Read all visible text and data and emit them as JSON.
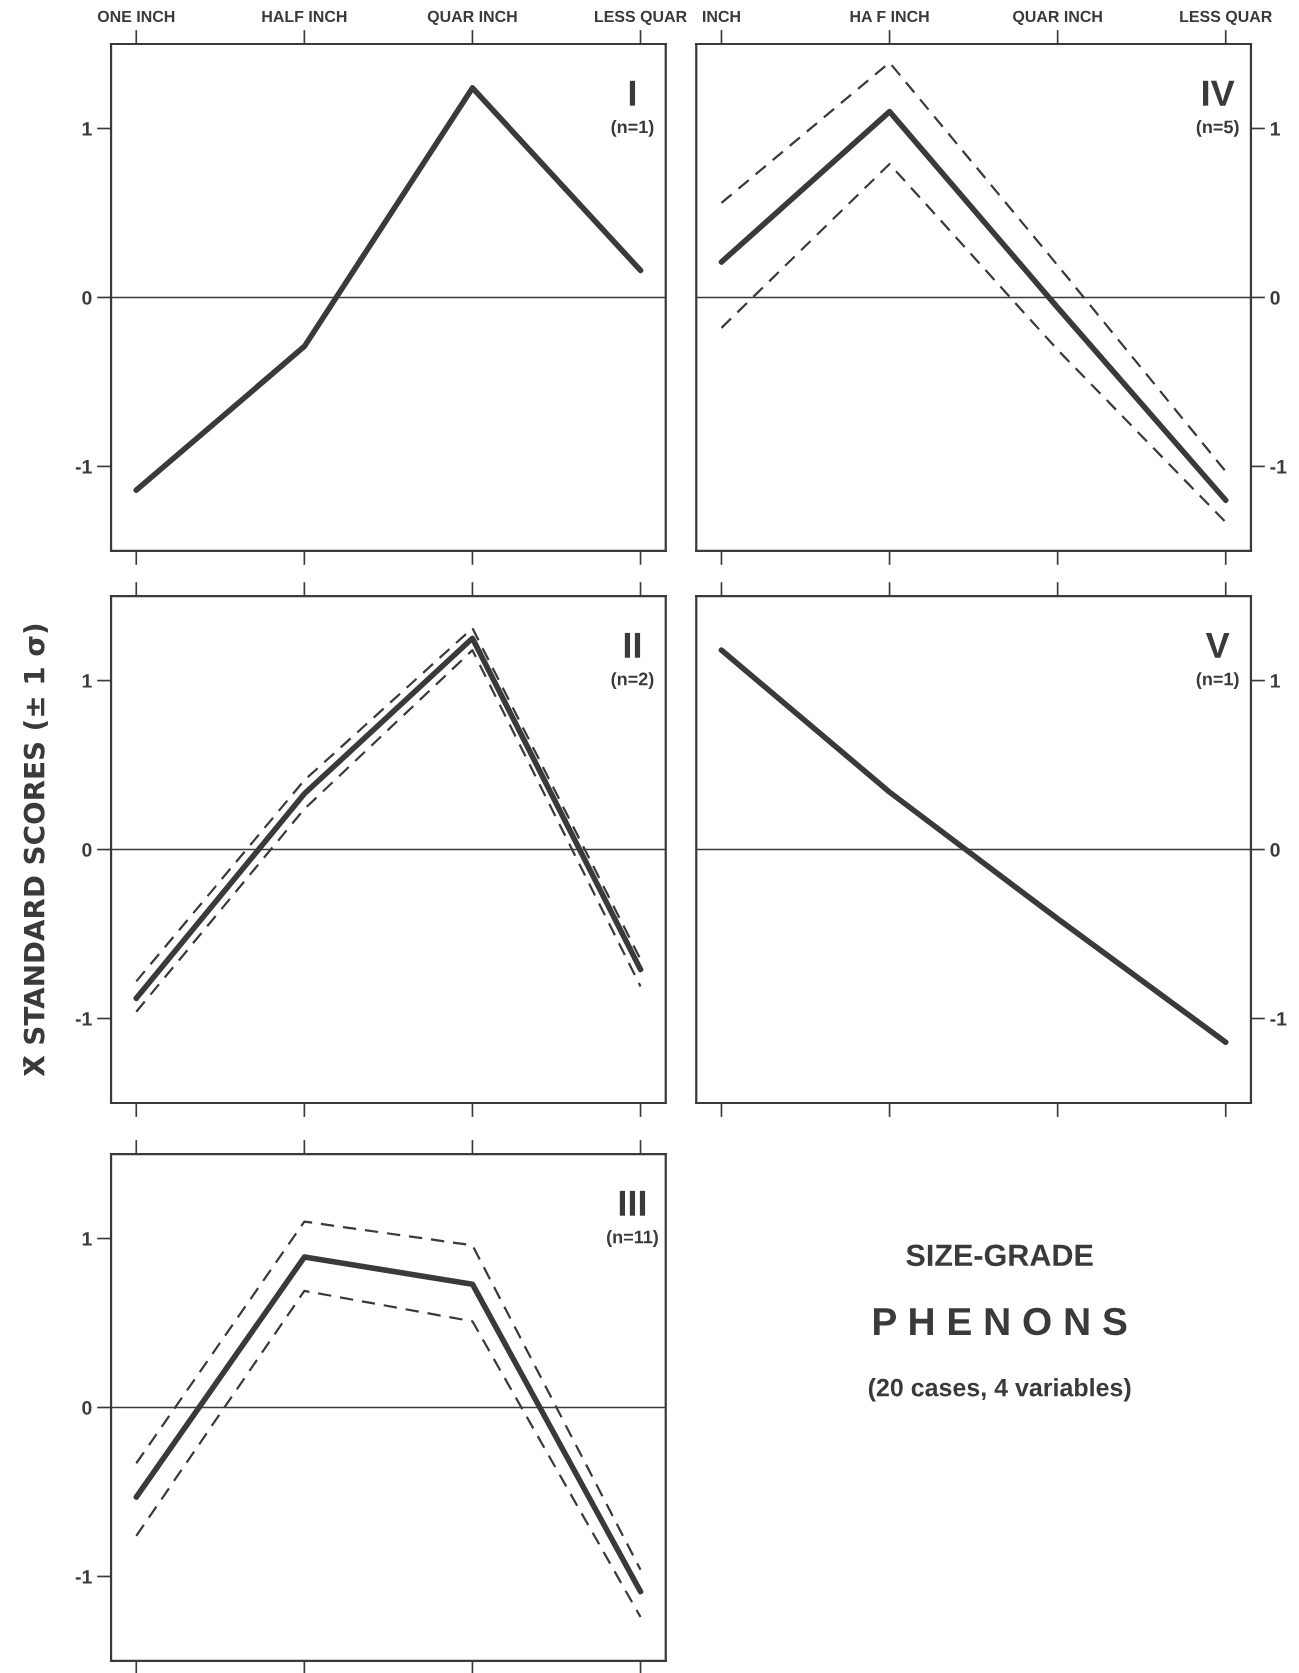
{
  "chart_data": [
    {
      "type": "line",
      "categories": [
        "ONE INCH",
        "HALF INCH",
        "QUAR INCH",
        "LESS QUAR"
      ],
      "annotations": [
        "I",
        "(n=1)"
      ],
      "series": [
        {
          "color": "#3a3a3a",
          "line_style": "solid",
          "values": [
            -1.14,
            -0.29,
            1.24,
            0.16
          ]
        }
      ],
      "ylim": [
        -1.5,
        1.5
      ],
      "yticks": [
        -1,
        0,
        1
      ],
      "ref_lines": [
        {
          "axis": "y",
          "value": 0
        }
      ]
    },
    {
      "type": "line",
      "categories": [
        "INCH",
        "HA F INCH",
        "QUAR INCH",
        "LESS QUAR"
      ],
      "annotations": [
        "IV",
        "(n=5)"
      ],
      "series": [
        {
          "color": "#3a3a3a",
          "line_style": "solid",
          "values": [
            0.21,
            1.1,
            -0.06,
            -1.2
          ]
        },
        {
          "color": "#3a3a3a",
          "line_style": "dashed",
          "values": [
            0.56,
            1.39,
            0.19,
            -1.03
          ]
        },
        {
          "color": "#3a3a3a",
          "line_style": "dashed",
          "values": [
            -0.18,
            0.79,
            -0.31,
            -1.33
          ]
        }
      ],
      "ylim": [
        -1.5,
        1.5
      ],
      "yticks": [
        -1,
        0,
        1
      ],
      "ref_lines": [
        {
          "axis": "y",
          "value": 0
        }
      ]
    },
    {
      "type": "line",
      "categories": [
        null,
        null,
        null,
        null
      ],
      "annotations": [
        "II",
        "(n=2)"
      ],
      "ylabel": "X̄ STANDARD SCORES (± 1 σ)",
      "tick_labels": "y",
      "series": [
        {
          "color": "#3a3a3a",
          "line_style": "solid",
          "values": [
            -0.88,
            0.33,
            1.25,
            -0.71
          ]
        },
        {
          "color": "#3a3a3a",
          "line_style": "dashed",
          "values": [
            -0.78,
            0.41,
            1.31,
            -0.65
          ]
        },
        {
          "color": "#3a3a3a",
          "line_style": "dashed",
          "values": [
            -0.96,
            0.24,
            1.18,
            -0.81
          ]
        }
      ],
      "ylim": [
        -1.5,
        1.5
      ],
      "yticks": [
        -1,
        0,
        1
      ],
      "ref_lines": [
        {
          "axis": "y",
          "value": 0
        }
      ]
    },
    {
      "type": "line",
      "categories": [
        null,
        null,
        null,
        null
      ],
      "annotations": [
        "V",
        "(n=1)"
      ],
      "tick_labels": "y",
      "series": [
        {
          "color": "#3a3a3a",
          "line_style": "solid",
          "values": [
            1.18,
            0.34,
            -0.41,
            -1.14
          ]
        }
      ],
      "ylim": [
        -1.5,
        1.5
      ],
      "yticks": [
        -1,
        0,
        1
      ],
      "ref_lines": [
        {
          "axis": "y",
          "value": 0
        }
      ]
    },
    {
      "type": "line",
      "categories": [
        null,
        null,
        null,
        null
      ],
      "annotations": [
        "III",
        "(n=11)"
      ],
      "tick_labels": "y",
      "series": [
        {
          "color": "#3a3a3a",
          "line_style": "solid",
          "values": [
            -0.53,
            0.89,
            0.73,
            -1.09
          ]
        },
        {
          "color": "#3a3a3a",
          "line_style": "dashed",
          "values": [
            -0.33,
            1.1,
            0.96,
            -0.96
          ]
        },
        {
          "color": "#3a3a3a",
          "line_style": "dashed",
          "values": [
            -0.76,
            0.69,
            0.51,
            -1.24
          ]
        }
      ],
      "ylim": [
        -1.5,
        1.5
      ],
      "yticks": [
        -1,
        0,
        1
      ],
      "ref_lines": [
        {
          "axis": "y",
          "value": 0
        }
      ]
    },
    {
      "type": "other",
      "annotations": [
        "SIZE-GRADE",
        "P H E N O N S",
        "(20 cases, 4 variables)"
      ]
    }
  ]
}
